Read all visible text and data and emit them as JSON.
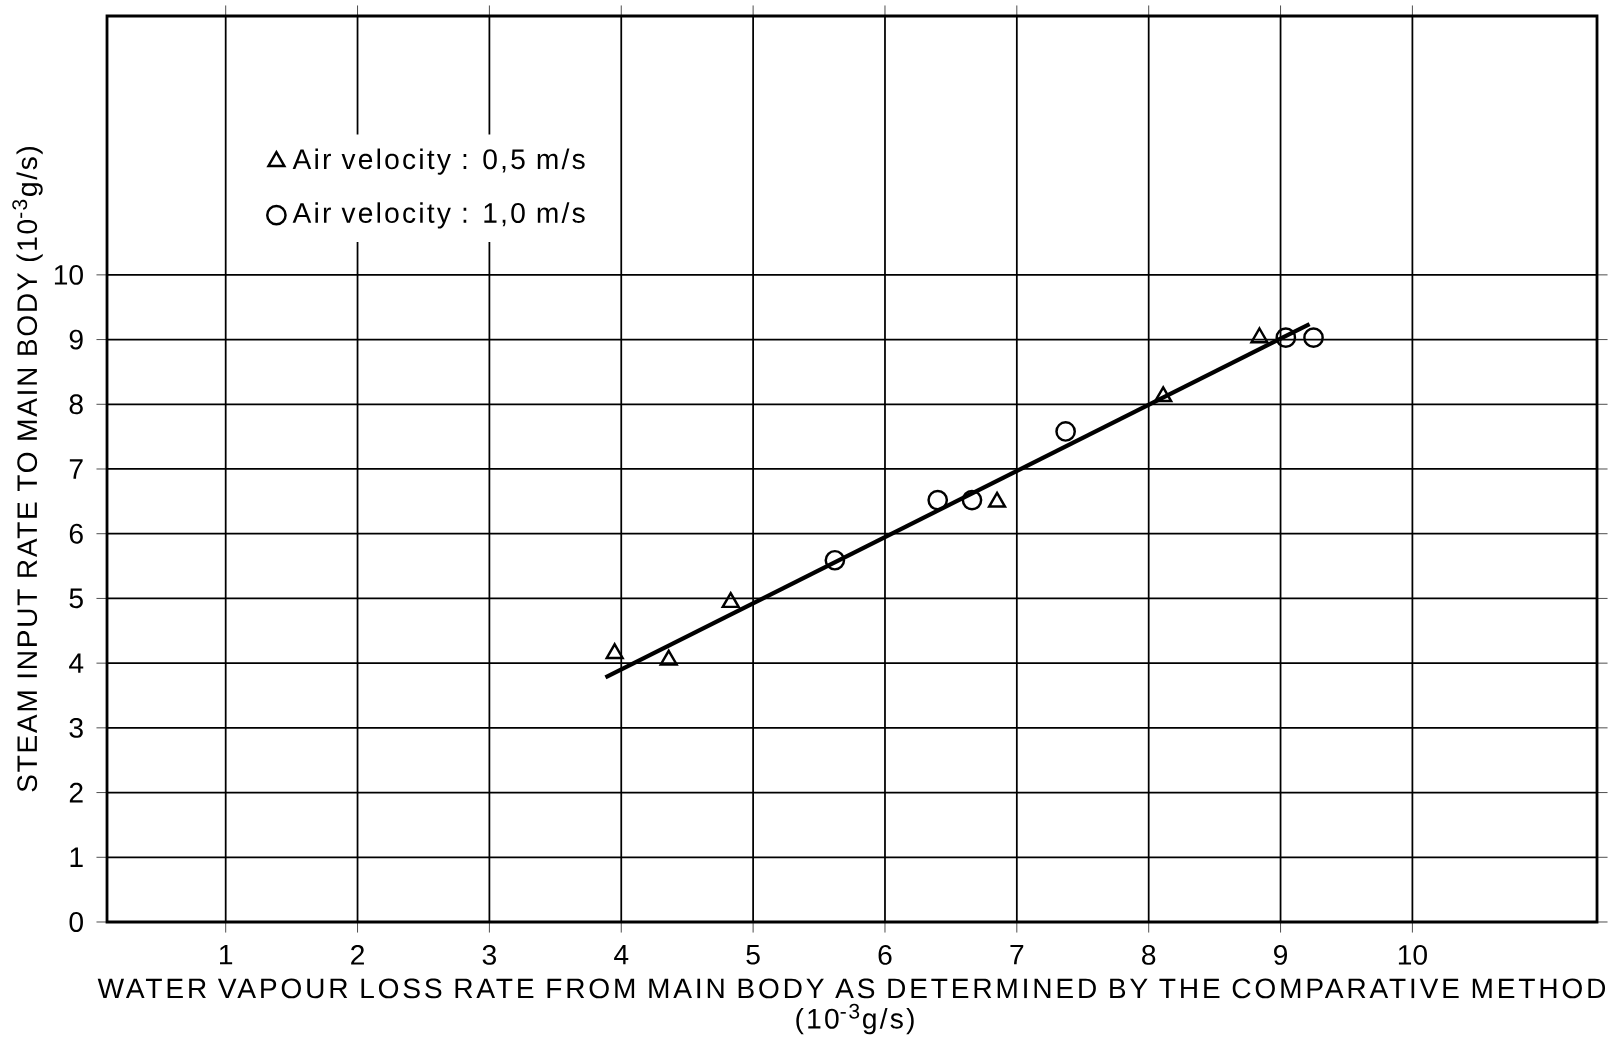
{
  "chart_data": {
    "type": "scatter",
    "xlabel": "WATER VAPOUR LOSS RATE FROM MAIN BODY AS DETERMINED BY THE COMPARATIVE METHOD",
    "ylabel": "STEAM INPUT RATE TO MAIN BODY (10$^{-3}$g/s)",
    "annotations": [
      "(10$^{-3}$g/s)"
    ],
    "xlim": [
      0.1,
      11.4
    ],
    "ylim": [
      0,
      14
    ],
    "xticks": [
      1,
      2,
      3,
      4,
      5,
      6,
      7,
      8,
      9,
      10
    ],
    "yticks": [
      0,
      1,
      2,
      3,
      4,
      5,
      6,
      7,
      8,
      9,
      10
    ],
    "grid": true,
    "legend": "top left",
    "series": [
      {
        "type": "line",
        "color": "#000000",
        "marker": "none",
        "x": [
          3.88,
          9.22
        ],
        "values": [
          3.78,
          9.24
        ]
      },
      {
        "name": "Air velocity : 0,5 m/s",
        "color": "#000000",
        "marker": "triangle",
        "x": [
          3.95,
          4.36,
          4.83,
          6.85,
          8.11,
          8.84
        ],
        "values": [
          4.15,
          4.05,
          4.94,
          6.49,
          8.12,
          9.03
        ]
      },
      {
        "name": "Air velocity : 1,0 m/s",
        "color": "#000000",
        "marker": "circle",
        "x": [
          5.62,
          6.4,
          6.66,
          7.37,
          9.04,
          9.25
        ],
        "values": [
          5.59,
          6.52,
          6.52,
          7.58,
          9.03,
          9.03
        ]
      }
    ]
  }
}
